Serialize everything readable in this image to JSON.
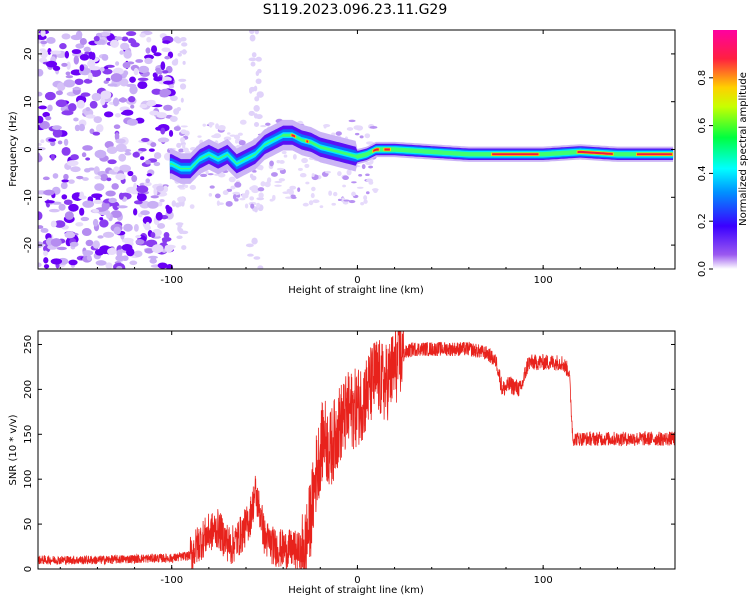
{
  "title": "S119.2023.096.23.11.G29",
  "chart_data": [
    {
      "type": "heatmap",
      "xlabel": "Height of straight line (km)",
      "ylabel": "Frequency (Hz)",
      "xlim": [
        -172,
        171
      ],
      "ylim": [
        -25,
        25
      ],
      "xticks": [
        -100,
        0,
        100
      ],
      "yticks": [
        -20,
        -10,
        0,
        10,
        20
      ],
      "colorbar": {
        "label": "Normalized spectral amplitude",
        "range": [
          0.0,
          1.0
        ],
        "ticks": [
          0.0,
          0.2,
          0.4,
          0.6,
          0.8
        ],
        "colormap": [
          "#ffffff",
          "#9b59f0",
          "#3a00ff",
          "#0090ff",
          "#00ffff",
          "#00ff40",
          "#c8ff00",
          "#ffd000",
          "#ff2040",
          "#ff00a0"
        ]
      },
      "ridge_x": [
        -100,
        -95,
        -90,
        -85,
        -80,
        -75,
        -70,
        -65,
        -60,
        -55,
        -50,
        -45,
        -40,
        -35,
        -30,
        -25,
        -20,
        -15,
        -10,
        -5,
        0,
        5,
        10,
        20,
        40,
        60,
        80,
        100,
        120,
        140,
        170
      ],
      "ridge_y": [
        -3,
        -4,
        -4,
        -2,
        -1,
        -2,
        -1,
        -3,
        -2,
        -1,
        1,
        2,
        3,
        3,
        2,
        1.5,
        0.5,
        0,
        -0.5,
        -1,
        -1.5,
        -1,
        0,
        0,
        -0.5,
        -1,
        -1,
        -1,
        -0.5,
        -1,
        -1
      ]
    },
    {
      "type": "line",
      "xlabel": "Height of straight line (km)",
      "ylabel": "SNR (10 * v/v)",
      "xlim": [
        -172,
        171
      ],
      "ylim": [
        0,
        265
      ],
      "xticks": [
        -100,
        0,
        100
      ],
      "yticks": [
        0,
        50,
        100,
        150,
        200,
        250
      ],
      "color": "#e8221c",
      "x": [
        -172,
        -140,
        -110,
        -100,
        -90,
        -85,
        -80,
        -75,
        -72,
        -68,
        -62,
        -58,
        -55,
        -52,
        -50,
        -45,
        -40,
        -35,
        -30,
        -28,
        -25,
        -22,
        -18,
        -15,
        -10,
        -5,
        0,
        5,
        10,
        15,
        20,
        25,
        30,
        40,
        50,
        60,
        70,
        75,
        78,
        82,
        88,
        92,
        95,
        100,
        105,
        110,
        114,
        116,
        120,
        130,
        140,
        150,
        160,
        171
      ],
      "y": [
        10,
        10,
        12,
        12,
        15,
        30,
        40,
        45,
        35,
        25,
        40,
        55,
        85,
        60,
        35,
        25,
        22,
        22,
        18,
        25,
        60,
        110,
        150,
        130,
        160,
        175,
        180,
        195,
        215,
        205,
        225,
        240,
        245,
        245,
        245,
        245,
        240,
        230,
        200,
        205,
        200,
        230,
        230,
        230,
        230,
        230,
        220,
        145,
        145,
        145,
        145,
        145,
        145,
        145
      ]
    }
  ]
}
